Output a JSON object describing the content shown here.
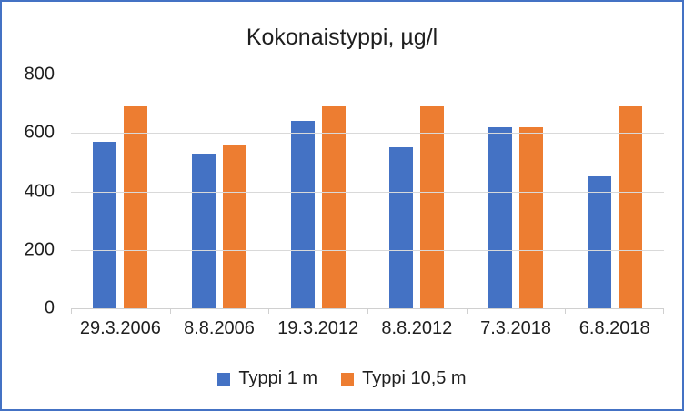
{
  "chart_data": {
    "type": "bar",
    "title": "Kokonaistyppi, µg/l",
    "categories": [
      "29.3.2006",
      "8.8.2006",
      "19.3.2012",
      "8.8.2012",
      "7.3.2018",
      "6.8.2018"
    ],
    "series": [
      {
        "name": "Typpi 1 m",
        "color": "#4472C4",
        "values": [
          570,
          530,
          640,
          550,
          620,
          450
        ]
      },
      {
        "name": "Typpi 10,5 m",
        "color": "#ED7D31",
        "values": [
          690,
          560,
          690,
          690,
          620,
          690
        ]
      }
    ],
    "xlabel": "",
    "ylabel": "",
    "ylim": [
      0,
      800
    ],
    "yticks": [
      0,
      200,
      400,
      600,
      800
    ],
    "grid": true,
    "legend_position": "bottom"
  },
  "colors": {
    "frame_border": "#4472C4",
    "gridline": "#D9D9D9",
    "axis_line": "#D0D0D0",
    "text": "#1F1F1F",
    "background": "#FFFFFF"
  }
}
